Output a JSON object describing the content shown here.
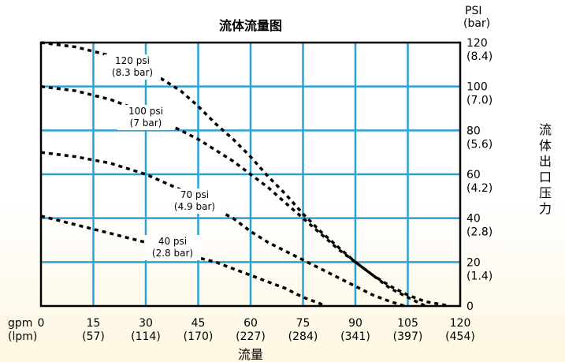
{
  "chart_data": {
    "type": "line",
    "title": "流体流量图",
    "xlabel": "流量",
    "ylabel": "流体出口压力",
    "x_unit_primary": "gpm",
    "x_unit_secondary": "(lpm)",
    "y_unit_primary": "PSI",
    "y_unit_secondary": "(bar)",
    "xlim": [
      0,
      120
    ],
    "ylim": [
      0,
      120
    ],
    "x_ticks": [
      {
        "value": 0,
        "label": "0",
        "sub": ""
      },
      {
        "value": 15,
        "label": "15",
        "sub": "(57)"
      },
      {
        "value": 30,
        "label": "30",
        "sub": "(114)"
      },
      {
        "value": 45,
        "label": "45",
        "sub": "(170)"
      },
      {
        "value": 60,
        "label": "60",
        "sub": "(227)"
      },
      {
        "value": 75,
        "label": "75",
        "sub": "(284)"
      },
      {
        "value": 90,
        "label": "90",
        "sub": "(341)"
      },
      {
        "value": 105,
        "label": "105",
        "sub": "(397)"
      },
      {
        "value": 120,
        "label": "120",
        "sub": "(454)"
      }
    ],
    "y_ticks": [
      {
        "value": 0,
        "label": "0",
        "sub": ""
      },
      {
        "value": 20,
        "label": "20",
        "sub": "(1.4)"
      },
      {
        "value": 40,
        "label": "40",
        "sub": "(2.8)"
      },
      {
        "value": 60,
        "label": "60",
        "sub": "(4.2)"
      },
      {
        "value": 80,
        "label": "80",
        "sub": "(5.6)"
      },
      {
        "value": 100,
        "label": "100",
        "sub": "(7.0)"
      },
      {
        "value": 120,
        "label": "120",
        "sub": "(8.4)"
      }
    ],
    "grid": true,
    "series": [
      {
        "name": "120 psi",
        "sub": "(8.3 bar)",
        "x": [
          0,
          10,
          20,
          30,
          40,
          45,
          50,
          55,
          60,
          65,
          70,
          75,
          80,
          85,
          90,
          95,
          100,
          105,
          110
        ],
        "y": [
          120,
          118,
          114,
          108,
          98,
          91,
          83,
          76,
          68,
          59,
          51,
          42,
          34,
          27,
          20,
          14,
          8,
          4,
          0
        ]
      },
      {
        "name": "100 psi",
        "sub": "(7 bar)",
        "x": [
          0,
          10,
          20,
          30,
          40,
          45,
          50,
          55,
          60,
          65,
          70,
          75,
          80,
          85,
          90,
          95,
          100,
          105,
          110,
          115,
          117
        ],
        "y": [
          100,
          98,
          94,
          88,
          80,
          76,
          71,
          66,
          60,
          54,
          47,
          40,
          33,
          26,
          20,
          14,
          9,
          5,
          2,
          0.6,
          0
        ]
      },
      {
        "name": "70 psi",
        "sub": "(4.9 bar)",
        "x": [
          0,
          10,
          20,
          30,
          40,
          45,
          50,
          55,
          60,
          65,
          70,
          75,
          80,
          85,
          90,
          95,
          100,
          104
        ],
        "y": [
          70,
          68,
          65,
          60,
          53,
          49,
          44,
          40,
          34,
          29,
          25,
          21,
          17,
          13,
          9,
          5,
          2,
          0
        ]
      },
      {
        "name": "40 psi",
        "sub": "(2.8 bar)",
        "x": [
          0,
          10,
          20,
          30,
          40,
          45,
          50,
          55,
          60,
          65,
          70,
          75,
          80,
          81
        ],
        "y": [
          41,
          37,
          33,
          29,
          24,
          22,
          20,
          17,
          14,
          11,
          8,
          4,
          1,
          0
        ]
      }
    ]
  }
}
